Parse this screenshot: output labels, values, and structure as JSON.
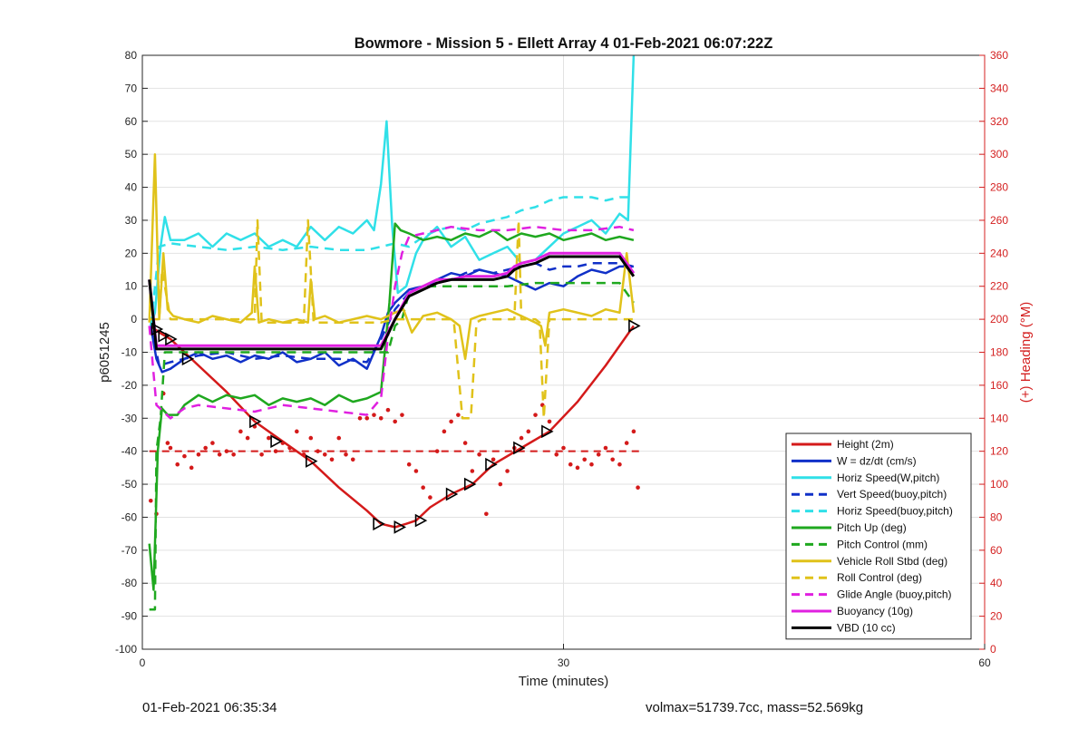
{
  "chart_data": {
    "type": "line",
    "title": "Bowmore - Mission 5 - Ellett Array 4 01-Feb-2021 06:07:22Z",
    "xlabel": "Time (minutes)",
    "ylabel": "p6051245",
    "y2label": "(+) Heading (°M)",
    "xlim": [
      0,
      60
    ],
    "ylim": [
      -100,
      80
    ],
    "y2lim": [
      0,
      360
    ],
    "xticks": [
      0,
      30,
      60
    ],
    "yticks": [
      -100,
      -90,
      -80,
      -70,
      -60,
      -50,
      -40,
      -30,
      -20,
      -10,
      0,
      10,
      20,
      30,
      40,
      50,
      60,
      70,
      80
    ],
    "y2ticks": [
      0,
      20,
      40,
      60,
      80,
      100,
      120,
      140,
      160,
      180,
      200,
      220,
      240,
      260,
      280,
      300,
      320,
      340,
      360
    ],
    "grid": true,
    "legend_position": "bottom-right",
    "colors": {
      "red": "#d41a1a",
      "blue": "#1030c8",
      "cyan": "#30e0e8",
      "green": "#1fa81f",
      "yellow": "#e0c21a",
      "magenta": "#e020e0",
      "black": "#000000",
      "axis2": "#d42020"
    },
    "series": [
      {
        "name": "Height (2m)",
        "color": "red",
        "dash": false,
        "width": 2.5,
        "x": [
          0.6,
          1.2,
          2,
          3,
          4,
          6,
          8,
          10,
          12,
          14,
          16,
          17,
          18,
          18.8,
          19.5,
          20.5,
          22,
          23.5,
          25,
          27,
          29,
          31,
          33,
          35
        ],
        "y": [
          -2,
          -4,
          -6,
          -10,
          -14,
          -22,
          -31,
          -37,
          -43,
          -51,
          -58,
          -62,
          -63,
          -62,
          -61,
          -57,
          -53,
          -50,
          -44,
          -39,
          -34,
          -25,
          -14,
          -2
        ]
      },
      {
        "name": "W = dz/dt (cm/s)",
        "color": "blue",
        "dash": false,
        "width": 2.5,
        "x": [
          0.6,
          1,
          1.4,
          2,
          3,
          4,
          5,
          6,
          7,
          8,
          9,
          10,
          11,
          12,
          13,
          14,
          15,
          16,
          16.5,
          17,
          17.5,
          18,
          18.5,
          19,
          20,
          21,
          22,
          23,
          24,
          25,
          26,
          27,
          28,
          29,
          30,
          31,
          32,
          33,
          34,
          35
        ],
        "y": [
          -2,
          -12,
          -16,
          -15,
          -12,
          -10,
          -12,
          -11,
          -13,
          -11,
          -12,
          -10,
          -13,
          -12,
          -10,
          -14,
          -12,
          -15,
          -10,
          -5,
          2,
          5,
          7,
          9,
          10,
          12,
          14,
          13,
          15,
          14,
          13,
          11,
          9,
          11,
          10,
          13,
          15,
          14,
          16,
          16
        ]
      },
      {
        "name": "Horiz Speed(W,pitch)",
        "color": "cyan",
        "dash": false,
        "width": 2.5,
        "x": [
          0.6,
          0.9,
          1.3,
          1.6,
          2,
          3,
          4,
          5,
          6,
          7,
          8,
          9,
          10,
          11,
          12,
          13,
          14,
          15,
          16,
          16.5,
          17,
          17.4,
          17.8,
          18.2,
          18.8,
          19.5,
          20,
          21,
          22,
          23,
          24,
          25,
          26,
          27,
          28,
          29,
          30,
          31,
          32,
          33,
          34,
          34.6,
          35
        ],
        "y": [
          -2,
          2,
          22,
          31,
          24,
          24,
          26,
          22,
          26,
          24,
          26,
          22,
          24,
          22,
          28,
          24,
          28,
          26,
          30,
          27,
          41,
          60,
          28,
          8,
          10,
          20,
          24,
          28,
          22,
          25,
          18,
          20,
          22,
          17,
          18,
          22,
          26,
          28,
          30,
          26,
          32,
          30,
          80
        ]
      },
      {
        "name": "Vert Speed(buoy,pitch)",
        "color": "blue",
        "dash": true,
        "width": 2.5,
        "x": [
          0.6,
          1.2,
          2,
          4,
          6,
          8,
          10,
          12,
          14,
          16,
          17,
          18,
          19,
          20,
          21,
          22,
          23,
          24,
          25,
          26,
          27,
          28,
          29,
          30,
          31,
          32,
          33,
          34,
          35
        ],
        "y": [
          -2,
          -14,
          -13,
          -11,
          -10,
          -12,
          -11,
          -12,
          -12,
          -13,
          -6,
          3,
          8,
          10,
          11,
          12,
          14,
          15,
          14,
          15,
          16,
          17,
          15,
          16,
          16,
          17,
          17,
          17,
          16
        ]
      },
      {
        "name": "Horiz Speed(buoy,pitch)",
        "color": "cyan",
        "dash": true,
        "width": 2.5,
        "x": [
          0.6,
          1.2,
          2,
          4,
          6,
          8,
          10,
          12,
          14,
          16,
          17,
          18,
          19,
          20,
          21,
          22,
          23,
          24,
          25,
          26,
          27,
          28,
          29,
          30,
          31,
          32,
          33,
          34,
          35
        ],
        "y": [
          -2,
          22,
          23,
          22,
          21,
          22,
          21,
          22,
          21,
          21,
          22,
          23,
          22,
          25,
          27,
          28,
          27,
          29,
          30,
          31,
          33,
          34,
          36,
          37,
          37,
          37,
          36,
          37,
          37
        ]
      },
      {
        "name": "Pitch Up (deg)",
        "color": "green",
        "dash": false,
        "width": 2.5,
        "x": [
          0.5,
          0.8,
          1.1,
          1.4,
          1.8,
          2.5,
          3,
          4,
          5,
          6,
          7,
          8,
          9,
          10,
          11,
          12,
          13,
          14,
          15,
          16,
          17,
          17.6,
          18,
          18.4,
          19,
          20,
          21,
          22,
          23,
          24,
          25,
          26,
          27,
          28,
          29,
          30,
          31,
          32,
          33,
          34,
          35
        ],
        "y": [
          -68,
          -82,
          -40,
          -27,
          -29,
          -29,
          -26,
          -23,
          -25,
          -23,
          -24,
          -23,
          -26,
          -24,
          -25,
          -24,
          -26,
          -23,
          -25,
          -24,
          -22,
          5,
          29,
          27,
          26,
          24,
          25,
          24,
          26,
          25,
          27,
          24,
          26,
          25,
          26,
          24,
          25,
          26,
          24,
          25,
          24
        ]
      },
      {
        "name": "Pitch Control (mm)",
        "color": "green",
        "dash": true,
        "width": 2.5,
        "x": [
          0.5,
          0.9,
          1,
          1.3,
          1.6,
          2,
          3,
          5,
          8,
          10,
          12,
          14,
          16,
          17,
          17.5,
          18,
          18.5,
          19,
          20,
          22,
          24,
          26,
          28,
          30,
          32,
          34,
          35
        ],
        "y": [
          -88,
          -88,
          -40,
          -30,
          -10,
          -10,
          -10,
          -10,
          -10,
          -10,
          -10,
          -10,
          -10,
          -10,
          -10,
          -2,
          0,
          8,
          10,
          10,
          10,
          10,
          11,
          11,
          11,
          11,
          5
        ]
      },
      {
        "name": "Vehicle Roll Stbd (deg)",
        "color": "yellow",
        "dash": false,
        "width": 2.5,
        "x": [
          0.5,
          0.9,
          1.2,
          1.5,
          1.8,
          2.2,
          3,
          4,
          5,
          6,
          7,
          7.8,
          8,
          8.3,
          9,
          10,
          11,
          11.8,
          12,
          12.3,
          13,
          14,
          15,
          16,
          17,
          18,
          18.6,
          19.2,
          20,
          21,
          22,
          22.6,
          23,
          23.4,
          24,
          25,
          26,
          27,
          28,
          28.4,
          28.7,
          29,
          30,
          31,
          32,
          33,
          34,
          34.5,
          35
        ],
        "y": [
          -1,
          50,
          0,
          20,
          3,
          1,
          0,
          -1,
          1,
          0,
          -1,
          2,
          16,
          -1,
          0,
          -1,
          0,
          -1,
          12,
          0,
          1,
          -1,
          0,
          1,
          0,
          2,
          3,
          -4,
          1,
          2,
          0,
          -2,
          -12,
          0,
          1,
          2,
          3,
          1,
          -1,
          -2,
          -8,
          2,
          3,
          2,
          1,
          3,
          2,
          20,
          2
        ]
      },
      {
        "name": "Roll Control (deg)",
        "color": "yellow",
        "dash": true,
        "width": 2.5,
        "x": [
          0.5,
          1.2,
          1.4,
          2,
          5,
          8,
          8.2,
          8.5,
          9,
          11.5,
          11.8,
          12.2,
          13,
          16,
          17,
          18,
          19,
          22,
          22.2,
          22.8,
          23.4,
          23.8,
          24.2,
          25,
          26.5,
          26.8,
          27,
          28,
          28.3,
          28.6,
          29,
          30,
          33,
          35
        ],
        "y": [
          0,
          0,
          15,
          0,
          0,
          0,
          30,
          -1,
          -1,
          -1,
          30,
          -1,
          -1,
          -1,
          -1,
          0,
          0,
          0,
          -1,
          -30,
          -30,
          -1,
          0,
          0,
          0,
          30,
          0,
          0,
          -1,
          -30,
          0,
          0,
          0,
          0
        ]
      },
      {
        "name": "Glide Angle (buoy,pitch)",
        "color": "magenta",
        "dash": true,
        "width": 2.5,
        "x": [
          0.5,
          1,
          1.5,
          2,
          3,
          4,
          6,
          8,
          10,
          12,
          14,
          16,
          17,
          17.5,
          18,
          18.5,
          19,
          20,
          22,
          24,
          26,
          28,
          30,
          32,
          34,
          35
        ],
        "y": [
          -2,
          -26,
          -28,
          -30,
          -27,
          -26,
          -27,
          -28,
          -26,
          -27,
          -28,
          -29,
          -24,
          -5,
          10,
          20,
          25,
          26,
          28,
          27,
          27,
          28,
          27,
          27,
          28,
          27
        ]
      },
      {
        "name": "Buoyancy (10g)",
        "color": "magenta",
        "dash": false,
        "width": 3,
        "x": [
          0.5,
          1,
          2,
          4,
          8,
          12,
          16,
          17,
          18,
          19,
          20,
          21,
          22,
          23,
          24,
          25,
          26,
          26.5,
          27,
          28,
          29,
          30,
          32,
          34,
          35
        ],
        "y": [
          12,
          -8,
          -8,
          -8,
          -8,
          -8,
          -8,
          -8,
          0,
          8,
          10,
          12,
          12,
          13,
          13,
          13,
          14,
          16,
          17,
          18,
          20,
          20,
          20,
          20,
          14
        ]
      },
      {
        "name": "VBD (10 cc)",
        "color": "black",
        "dash": false,
        "width": 3,
        "x": [
          0.5,
          1,
          2,
          4,
          8,
          12,
          16,
          17,
          18,
          19,
          20,
          21,
          22,
          23,
          24,
          25,
          26,
          26.5,
          27,
          28,
          29,
          30,
          32,
          34,
          35
        ],
        "y": [
          12,
          -9,
          -9,
          -9,
          -9,
          -9,
          -9,
          -9,
          0,
          7,
          9,
          11,
          12,
          12,
          12,
          12,
          13,
          15,
          16,
          17,
          19,
          19,
          19,
          19,
          13
        ]
      }
    ],
    "heading_points": {
      "name": "Heading",
      "color": "red",
      "x": [
        0.6,
        1,
        1.5,
        1.8,
        2,
        2.5,
        3,
        3.5,
        4,
        4.5,
        5,
        5.5,
        6,
        6.5,
        7,
        7.5,
        8,
        8.5,
        9,
        9.5,
        10,
        10.5,
        11,
        11.5,
        12,
        12.5,
        13,
        13.5,
        14,
        14.5,
        15,
        15.5,
        16,
        16.5,
        17,
        17.5,
        18,
        18.5,
        19,
        19.5,
        20,
        20.5,
        21,
        21.5,
        22,
        22.5,
        23,
        23.5,
        24,
        24.5,
        25,
        25.5,
        26,
        26.5,
        27,
        27.5,
        28,
        28.5,
        29,
        29.5,
        30,
        30.5,
        31,
        31.5,
        32,
        32.5,
        33,
        33.5,
        34,
        34.5,
        35,
        35.3
      ],
      "y": [
        90,
        82,
        155,
        125,
        122,
        112,
        117,
        110,
        118,
        122,
        125,
        118,
        120,
        118,
        132,
        128,
        135,
        118,
        128,
        120,
        125,
        122,
        132,
        118,
        128,
        120,
        118,
        115,
        128,
        118,
        115,
        140,
        140,
        142,
        140,
        145,
        138,
        142,
        112,
        108,
        98,
        92,
        120,
        132,
        138,
        142,
        125,
        108,
        118,
        82,
        115,
        100,
        108,
        122,
        128,
        132,
        142,
        148,
        138,
        118,
        122,
        112,
        110,
        115,
        112,
        118,
        122,
        115,
        112,
        125,
        132,
        98
      ]
    },
    "heading_reference": {
      "name": "Heading reference",
      "color": "red",
      "dash": true,
      "x": [
        0.5,
        35.5
      ],
      "y": [
        120,
        120
      ]
    },
    "markers": {
      "shape": "triangle",
      "x": [
        1,
        1.5,
        2,
        3.2,
        8,
        9.5,
        12,
        16.8,
        18.3,
        19.8,
        22,
        23.3,
        24.8,
        26.8,
        28.8,
        35
      ],
      "y": [
        -3,
        -5,
        -6,
        -12,
        -31,
        -37,
        -43,
        -62,
        -63,
        -61,
        -53,
        -50,
        -44,
        -39,
        -34,
        -2
      ]
    }
  },
  "footer": {
    "timestamp": "01-Feb-2021 06:35:34",
    "stats": "volmax=51739.7cc, mass=52.569kg"
  }
}
